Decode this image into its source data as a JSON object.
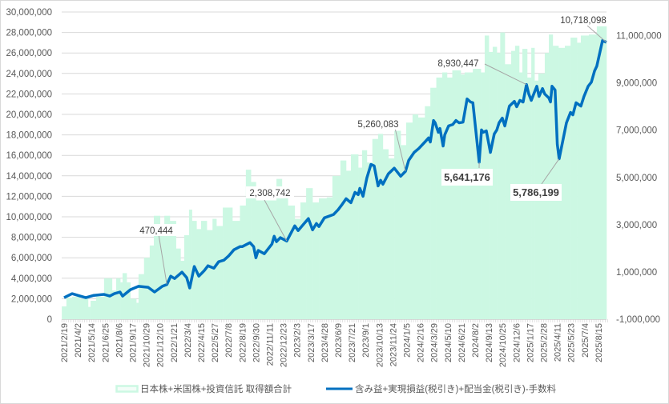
{
  "chart_data": {
    "type": "bar+line",
    "values_in_millions": true,
    "left_axis": {
      "range": [
        0,
        30
      ],
      "ticks": [
        "0",
        "2,000,000",
        "4,000,000",
        "6,000,000",
        "8,000,000",
        "10,000,000",
        "12,000,000",
        "14,000,000",
        "16,000,000",
        "18,000,000",
        "20,000,000",
        "22,000,000",
        "24,000,000",
        "26,000,000",
        "28,000,000",
        "30,000,000"
      ]
    },
    "right_axis": {
      "range": [
        -1,
        12
      ],
      "ticks": [
        "-1,000,000",
        "1,000,000",
        "3,000,000",
        "5,000,000",
        "7,000,000",
        "9,000,000",
        "11,000,000"
      ],
      "negative_color": "#ff0000"
    },
    "x_axis": {
      "unit": "weeks since 2021/2/19",
      "tick_every_weeks": 6,
      "labels": [
        "2021/2/19",
        "2021/4/2",
        "2021/5/14",
        "2021/6/25",
        "2021/8/6",
        "2021/9/17",
        "2021/10/29",
        "2021/12/10",
        "2022/1/21",
        "2022/3/4",
        "2022/4/15",
        "2022/5/27",
        "2022/7/8",
        "2022/8/19",
        "2022/9/30",
        "2022/11/11",
        "2022/12/23",
        "2023/2/3",
        "2023/3/17",
        "2023/4/28",
        "2023/6/9",
        "2023/7/21",
        "2023/9/1",
        "2023/10/13",
        "2023/11/24",
        "2024/1/5",
        "2024/2/16",
        "2024/3/29",
        "2024/5/10",
        "2024/6/21",
        "2024/8/2",
        "2024/9/13",
        "2024/10/25",
        "2024/12/6",
        "2025/1/17",
        "2025/2/28",
        "2025/4/11",
        "2025/5/23",
        "2025/7/4",
        "2025/8/15"
      ]
    },
    "series": [
      {
        "name": "日本株+米国株+投資信託 取得額合計",
        "type": "bar",
        "axis": "left",
        "color": "#ccf8e3",
        "steps": [
          [
            -1,
            1.25
          ],
          [
            1,
            2.1
          ],
          [
            3.5,
            2.2
          ],
          [
            7,
            2.0
          ],
          [
            10.5,
            1.2
          ],
          [
            11.6,
            1.8
          ],
          [
            14,
            2.2
          ],
          [
            17.5,
            4.0
          ],
          [
            21,
            2.8
          ],
          [
            22.8,
            4.0
          ],
          [
            24.6,
            3.6
          ],
          [
            25.6,
            4.5
          ],
          [
            27.4,
            3.6
          ],
          [
            29,
            2.0
          ],
          [
            31.6,
            1.6
          ],
          [
            32.6,
            4.4
          ],
          [
            35,
            6.0
          ],
          [
            37.5,
            7.2
          ],
          [
            39.3,
            10.1
          ],
          [
            42,
            9.2
          ],
          [
            43.9,
            10.1
          ],
          [
            46.3,
            9.6
          ],
          [
            49,
            6.9
          ],
          [
            51,
            5.7
          ],
          [
            52.6,
            8.2
          ],
          [
            54.7,
            10.7
          ],
          [
            56,
            9.6
          ],
          [
            58,
            8.8
          ],
          [
            60,
            9.6
          ],
          [
            62.5,
            8.7
          ],
          [
            65,
            9.8
          ],
          [
            66.7,
            9.1
          ],
          [
            69.5,
            10.9
          ],
          [
            73.7,
            9.6
          ],
          [
            77,
            11.1
          ],
          [
            79.6,
            14.6
          ],
          [
            81.8,
            13.4
          ],
          [
            84,
            11.6
          ],
          [
            93,
            13.7
          ],
          [
            95.4,
            11.9
          ],
          [
            98,
            11.1
          ],
          [
            101,
            9.8
          ],
          [
            103.5,
            11.4
          ],
          [
            106,
            12.8
          ],
          [
            108.8,
            11.4
          ],
          [
            111.6,
            11.8
          ],
          [
            115,
            11.9
          ],
          [
            117.5,
            14.0
          ],
          [
            121,
            15.5
          ],
          [
            123.5,
            14.5
          ],
          [
            125.6,
            16.1
          ],
          [
            128.8,
            14.8
          ],
          [
            130.5,
            16.5
          ],
          [
            132.6,
            15.3
          ],
          [
            135,
            17.6
          ],
          [
            137.5,
            18.1
          ],
          [
            139.6,
            16.6
          ],
          [
            142,
            15.7
          ],
          [
            144.6,
            18.4
          ],
          [
            147.4,
            17.0
          ],
          [
            149.8,
            19.2
          ],
          [
            152.6,
            20.0
          ],
          [
            155,
            19.7
          ],
          [
            158,
            20.8
          ],
          [
            160.4,
            22.6
          ],
          [
            163,
            23.6
          ],
          [
            165.6,
            24.1
          ],
          [
            167.7,
            23.6
          ],
          [
            170,
            24.3
          ],
          [
            173.7,
            23.9
          ],
          [
            175.4,
            24.1
          ],
          [
            179,
            24.7
          ],
          [
            182.5,
            24.1
          ],
          [
            184.2,
            27.7
          ],
          [
            186,
            26.1
          ],
          [
            187.7,
            26.6
          ],
          [
            189.5,
            26.0
          ],
          [
            191,
            28.0
          ],
          [
            193,
            24.9
          ],
          [
            195.8,
            26.2
          ],
          [
            197.5,
            26.7
          ],
          [
            199.3,
            24.1
          ],
          [
            200.7,
            26.4
          ],
          [
            202.8,
            23.6
          ],
          [
            204.6,
            26.5
          ],
          [
            206,
            23.3
          ],
          [
            207.7,
            24.0
          ],
          [
            210.5,
            26.0
          ],
          [
            212.3,
            27.8
          ],
          [
            214,
            26.7
          ],
          [
            216.5,
            26.5
          ],
          [
            219.3,
            26.7
          ],
          [
            221.8,
            27.5
          ],
          [
            224.6,
            27.0
          ],
          [
            226.3,
            27.7
          ],
          [
            229.8,
            27.8
          ],
          [
            233.3,
            28.6
          ]
        ],
        "end_week": 238
      },
      {
        "name": "含み益+実現損益(税引き)+配当金(税引き)-手数料",
        "type": "line",
        "axis": "right",
        "color": "#0070c0",
        "points": [
          [
            0,
            -0.09
          ],
          [
            3.5,
            0.08
          ],
          [
            7,
            -0.02
          ],
          [
            9.5,
            -0.09
          ],
          [
            13,
            0.01
          ],
          [
            17.5,
            0.05
          ],
          [
            20,
            -0.02
          ],
          [
            22,
            0.08
          ],
          [
            24.5,
            0.15
          ],
          [
            25.6,
            -0.02
          ],
          [
            29,
            0.25
          ],
          [
            32.6,
            0.39
          ],
          [
            36.8,
            0.35
          ],
          [
            39.6,
            0.15
          ],
          [
            43,
            0.39
          ],
          [
            45,
            0.470444
          ],
          [
            46.7,
            0.82
          ],
          [
            48.4,
            0.72
          ],
          [
            51.6,
            0.99
          ],
          [
            53.7,
            0.76
          ],
          [
            55,
            0.32
          ],
          [
            57,
            1.23
          ],
          [
            59,
            0.82
          ],
          [
            61.4,
            1.06
          ],
          [
            63,
            1.26
          ],
          [
            65.6,
            1.16
          ],
          [
            67.7,
            1.43
          ],
          [
            70,
            1.5
          ],
          [
            72,
            1.67
          ],
          [
            74.4,
            1.94
          ],
          [
            77,
            2.07
          ],
          [
            78,
            2.07
          ],
          [
            81.4,
            2.24
          ],
          [
            83,
            2.07
          ],
          [
            84,
            1.6
          ],
          [
            85,
            1.91
          ],
          [
            87.7,
            1.77
          ],
          [
            91,
            2.18
          ],
          [
            92,
            2.51
          ],
          [
            93,
            2.28
          ],
          [
            94.7,
            2.45
          ],
          [
            97.5,
            2.308742
          ],
          [
            101,
            2.95
          ],
          [
            102.5,
            2.75
          ],
          [
            107,
            3.26
          ],
          [
            108.8,
            2.78
          ],
          [
            110.5,
            3.05
          ],
          [
            111.6,
            2.92
          ],
          [
            114,
            3.29
          ],
          [
            118,
            3.43
          ],
          [
            120,
            3.63
          ],
          [
            121.8,
            3.86
          ],
          [
            123.5,
            4.1
          ],
          [
            125.6,
            3.93
          ],
          [
            127.4,
            4.37
          ],
          [
            128.8,
            4.27
          ],
          [
            129.5,
            4.54
          ],
          [
            130.9,
            4.2
          ],
          [
            132.6,
            4.98
          ],
          [
            134.4,
            5.55
          ],
          [
            135.8,
            5.49
          ],
          [
            137.5,
            4.64
          ],
          [
            138.6,
            4.88
          ],
          [
            139.6,
            4.71
          ],
          [
            142,
            5.15
          ],
          [
            144.6,
            5.39
          ],
          [
            147.4,
            5.05
          ],
          [
            149.5,
            5.260083
          ],
          [
            150.9,
            5.72
          ],
          [
            153.3,
            6.06
          ],
          [
            155.4,
            6.23
          ],
          [
            158,
            6.5
          ],
          [
            159.6,
            6.67
          ],
          [
            160.4,
            6.5
          ],
          [
            161.8,
            7.41
          ],
          [
            162.5,
            7.31
          ],
          [
            163.9,
            6.91
          ],
          [
            164.6,
            7.07
          ],
          [
            166,
            6.33
          ],
          [
            166.7,
            6.8
          ],
          [
            168.4,
            7.18
          ],
          [
            170.2,
            7.24
          ],
          [
            171.6,
            7.41
          ],
          [
            173,
            7.31
          ],
          [
            174.7,
            7.34
          ],
          [
            176.5,
            8.32
          ],
          [
            178,
            8.19
          ],
          [
            179,
            8.16
          ],
          [
            181.8,
            5.641176
          ],
          [
            182.8,
            7.01
          ],
          [
            183.5,
            6.91
          ],
          [
            184.9,
            6.97
          ],
          [
            186.7,
            6.06
          ],
          [
            188.4,
            6.84
          ],
          [
            189.5,
            7.01
          ],
          [
            190.5,
            7.31
          ],
          [
            191.9,
            7.51
          ],
          [
            193,
            7.18
          ],
          [
            195,
            8.02
          ],
          [
            197.2,
            8.22
          ],
          [
            198.2,
            7.99
          ],
          [
            199.6,
            8.26
          ],
          [
            201,
            8.19
          ],
          [
            202.5,
            8.930447
          ],
          [
            203.5,
            8.53
          ],
          [
            204.6,
            8.26
          ],
          [
            207,
            8.86
          ],
          [
            208,
            8.43
          ],
          [
            209.5,
            8.76
          ],
          [
            210.5,
            8.53
          ],
          [
            212.3,
            8.36
          ],
          [
            213,
            8.19
          ],
          [
            213.7,
            8.86
          ],
          [
            215,
            8.7
          ],
          [
            216,
            6.4
          ],
          [
            216.8,
            5.786199
          ],
          [
            220,
            7.31
          ],
          [
            221.8,
            7.75
          ],
          [
            222.8,
            7.65
          ],
          [
            224.2,
            8.16
          ],
          [
            226.3,
            8.02
          ],
          [
            227.7,
            8.43
          ],
          [
            229.5,
            8.86
          ],
          [
            230.9,
            9.03
          ],
          [
            232.3,
            9.51
          ],
          [
            233.3,
            9.71
          ],
          [
            235.8,
            10.79
          ],
          [
            237.5,
            10.718098
          ]
        ]
      }
    ],
    "annotations": [
      {
        "label": "470,444",
        "week": 45,
        "value": 0.470444,
        "bold": false
      },
      {
        "label": "2,308,742",
        "week": 97.5,
        "value": 2.308742,
        "bold": false
      },
      {
        "label": "5,260,083",
        "week": 149.5,
        "value": 5.260083,
        "bold": false
      },
      {
        "label": "8,930,447",
        "week": 202.5,
        "value": 8.930447,
        "bold": false
      },
      {
        "label": "5,641,176",
        "week": 181.8,
        "value": 5.641176,
        "bold": true
      },
      {
        "label": "5,786,199",
        "week": 216.8,
        "value": 5.786199,
        "bold": true
      },
      {
        "label": "10,718,098",
        "week": 237.5,
        "value": 10.718098,
        "bold": false
      }
    ],
    "grid": true,
    "legend_position": "bottom"
  }
}
